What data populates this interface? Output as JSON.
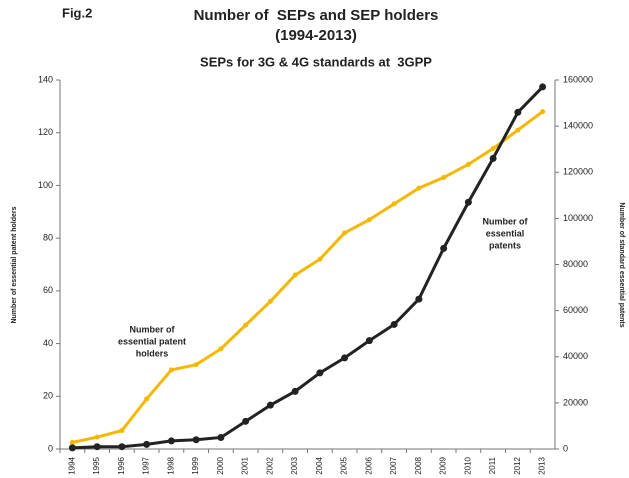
{
  "chart_data": {
    "type": "line",
    "figure_label": "Fig.2",
    "title": [
      "Number of  SEPs and SEP holders",
      "(1994-2013)"
    ],
    "subtitle": "SEPs for 3G & 4G standards at  3GPP",
    "ylabel": "Number of essential patent holders",
    "y2label": "Number of standard essential patents",
    "categories": [
      "1994",
      "1995",
      "1996",
      "1997",
      "1998",
      "1999",
      "2000",
      "2001",
      "2002",
      "2003",
      "2004",
      "2005",
      "2006",
      "2007",
      "2008",
      "2009",
      "2010",
      "2011",
      "2012",
      "2013"
    ],
    "series": [
      {
        "name": "Number of essential patent holders",
        "color": "#f5b800",
        "axis": "y",
        "values": [
          2.5,
          4.5,
          7,
          19,
          30,
          32,
          38,
          47,
          56,
          66,
          72,
          82,
          87,
          93,
          99,
          103,
          108,
          114,
          121,
          128
        ]
      },
      {
        "name": "Number of essential patents",
        "color": "#222222",
        "axis": "y2",
        "values": [
          500,
          1000,
          1000,
          2000,
          3500,
          4000,
          5000,
          12000,
          19000,
          25000,
          33000,
          39500,
          47000,
          54000,
          65000,
          87000,
          107000,
          126000,
          146000,
          157000
        ]
      }
    ],
    "annotations": [
      {
        "lines": [
          "Number of",
          "essential patent",
          "holders"
        ],
        "series": 0
      },
      {
        "lines": [
          "Number of",
          "essential",
          "patents"
        ],
        "series": 1
      }
    ],
    "ylim": [
      0,
      140
    ],
    "yticks": [
      0,
      20,
      40,
      60,
      80,
      100,
      120,
      140
    ],
    "y2lim": [
      0,
      160000
    ],
    "y2ticks": [
      0,
      20000,
      40000,
      60000,
      80000,
      100000,
      120000,
      140000,
      160000
    ]
  }
}
